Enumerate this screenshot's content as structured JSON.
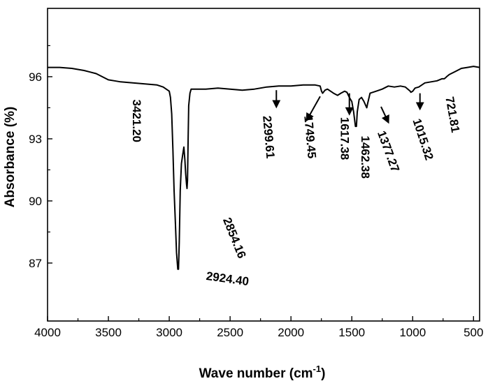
{
  "chart_data": {
    "type": "line",
    "xlabel": "Wave number (cm",
    "xlabel_superscript": "-1",
    "xlabel_suffix": ")",
    "ylabel": "Absorbance (%)",
    "xlim": [
      4000,
      450
    ],
    "ylim": [
      84.2,
      99.3
    ],
    "x_reversed": true,
    "grid": false,
    "x_ticks": [
      4000,
      3500,
      3000,
      2500,
      2000,
      1500,
      1000,
      500
    ],
    "y_ticks": [
      87,
      90,
      93,
      96
    ],
    "series": [
      {
        "x": [
          4000,
          3900,
          3800,
          3700,
          3600,
          3500,
          3450,
          3400,
          3300,
          3200,
          3100,
          3050,
          3000,
          2990,
          2980,
          2970,
          2960,
          2950,
          2940,
          2930,
          2924,
          2918,
          2910,
          2900,
          2890,
          2880,
          2872,
          2865,
          2858,
          2854,
          2850,
          2845,
          2840,
          2830,
          2820,
          2800,
          2700,
          2600,
          2500,
          2400,
          2300,
          2200,
          2100,
          2000,
          1900,
          1800,
          1760,
          1749,
          1740,
          1720,
          1700,
          1650,
          1617,
          1590,
          1560,
          1540,
          1520,
          1500,
          1485,
          1470,
          1462,
          1455,
          1440,
          1420,
          1400,
          1385,
          1377,
          1370,
          1350,
          1300,
          1250,
          1200,
          1150,
          1100,
          1060,
          1040,
          1020,
          1015,
          1000,
          980,
          950,
          900,
          850,
          800,
          760,
          740,
          730,
          721,
          710,
          700,
          650,
          600,
          550,
          500,
          450
        ],
        "y": [
          96.45,
          96.45,
          96.4,
          96.3,
          96.15,
          95.85,
          95.8,
          95.75,
          95.7,
          95.65,
          95.6,
          95.5,
          95.3,
          95.0,
          94.2,
          92.5,
          90.5,
          89.0,
          87.5,
          86.7,
          86.7,
          88.0,
          90.5,
          91.8,
          92.2,
          92.6,
          92.0,
          91.3,
          90.8,
          90.6,
          91.0,
          93.0,
          94.6,
          95.2,
          95.4,
          95.4,
          95.4,
          95.45,
          95.4,
          95.35,
          95.4,
          95.5,
          95.55,
          95.55,
          95.6,
          95.6,
          95.55,
          95.3,
          95.2,
          95.35,
          95.4,
          95.2,
          95.1,
          95.2,
          95.3,
          95.25,
          95.0,
          94.8,
          94.3,
          93.6,
          93.6,
          94.3,
          94.9,
          95.0,
          94.8,
          94.6,
          94.5,
          94.7,
          95.2,
          95.3,
          95.4,
          95.55,
          95.5,
          95.55,
          95.5,
          95.4,
          95.3,
          95.25,
          95.3,
          95.45,
          95.5,
          95.7,
          95.75,
          95.8,
          95.9,
          95.9,
          95.95,
          96.0,
          96.05,
          96.1,
          96.25,
          96.4,
          96.45,
          96.5,
          96.45
        ]
      }
    ],
    "annotations": [
      {
        "text": "3421.20",
        "x": 3300,
        "y": 94.9,
        "rotate": 90
      },
      {
        "text": "2924.40",
        "x": 2700,
        "y": 86.2,
        "rotate": 8
      },
      {
        "text": "2854.16",
        "x": 2560,
        "y": 89.1,
        "rotate": 68
      },
      {
        "text": "2299.61",
        "x": 2230,
        "y": 94.1,
        "rotate": 85
      },
      {
        "text": "1749.45",
        "x": 1890,
        "y": 94.1,
        "rotate": 85
      },
      {
        "text": "1617.38",
        "x": 1590,
        "y": 94.05,
        "rotate": 90
      },
      {
        "text": "1462.38",
        "x": 1420,
        "y": 93.15,
        "rotate": 90
      },
      {
        "text": "1377.27",
        "x": 1290,
        "y": 93.3,
        "rotate": 70
      },
      {
        "text": "1015.32",
        "x": 1000,
        "y": 93.9,
        "rotate": 72
      },
      {
        "text": "721.81",
        "x": 730,
        "y": 95.0,
        "rotate": 80
      }
    ],
    "arrows": [
      {
        "x": 2120,
        "y1": 95.35,
        "y2": 94.55
      },
      {
        "x": 1760,
        "y1": 95.05,
        "y2": 93.9,
        "x2": 1870
      },
      {
        "x": 1520,
        "y1": 95.2,
        "y2": 94.2
      },
      {
        "x": 1260,
        "y1": 94.55,
        "y2": 93.8,
        "x2": 1200
      },
      {
        "x": 940,
        "y1": 95.2,
        "y2": 94.45
      }
    ]
  }
}
